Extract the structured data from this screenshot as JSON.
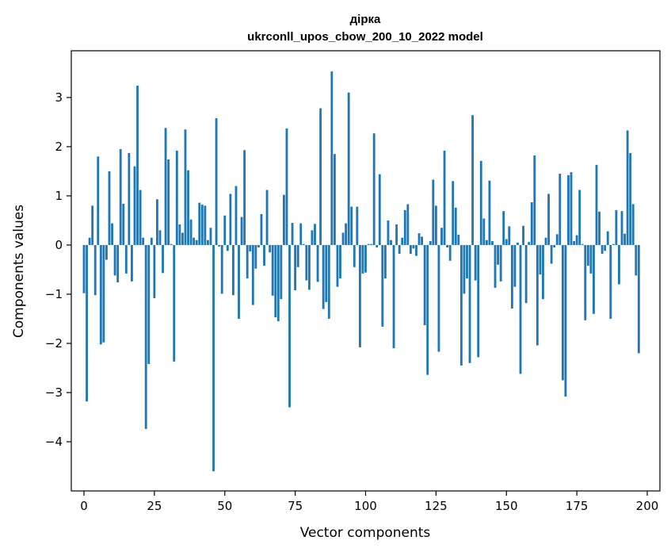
{
  "chart_data": {
    "type": "bar",
    "title": "дірка",
    "subtitle": "ukrconll_upos_cbow_200_10_2022 model",
    "xlabel": "Vector components",
    "ylabel": "Components values",
    "xlim": [
      -4.5,
      204.5
    ],
    "ylim": [
      -5.0,
      3.95
    ],
    "xticks": [
      0,
      25,
      50,
      75,
      100,
      125,
      150,
      175,
      200
    ],
    "yticks": [
      -4,
      -3,
      -2,
      -1,
      0,
      1,
      2,
      3
    ],
    "ytick_labels": [
      "−4",
      "−3",
      "−2",
      "−1",
      "0",
      "1",
      "2",
      "3"
    ],
    "grid": false,
    "color": "#1f77b4",
    "values": [
      -0.98,
      -3.18,
      0.15,
      0.8,
      -1.02,
      1.8,
      -2.02,
      -1.98,
      -0.3,
      1.5,
      0.44,
      -0.62,
      -0.76,
      1.95,
      0.84,
      -0.58,
      1.87,
      -0.74,
      1.6,
      3.24,
      1.12,
      0.15,
      -3.74,
      -2.42,
      0.15,
      -1.08,
      0.93,
      0.3,
      -0.57,
      2.38,
      1.74,
      0.02,
      -2.37,
      1.92,
      0.42,
      0.25,
      2.35,
      1.52,
      0.52,
      0.15,
      0.1,
      0.86,
      0.82,
      0.8,
      0.1,
      0.35,
      -4.6,
      2.58,
      -0.03,
      -0.99,
      0.6,
      -0.12,
      1.04,
      -1.02,
      1.2,
      -1.5,
      0.57,
      1.93,
      -0.68,
      -0.13,
      -1.22,
      -0.48,
      -0.05,
      0.63,
      -0.42,
      1.12,
      -0.15,
      -1.03,
      -1.47,
      -1.55,
      -1.1,
      1.02,
      2.37,
      -3.3,
      0.45,
      -0.92,
      -0.45,
      0.44,
      0.02,
      -0.72,
      -0.91,
      0.3,
      0.43,
      -0.75,
      2.78,
      -1.3,
      -1.16,
      -1.5,
      3.53,
      1.85,
      -0.85,
      -0.68,
      0.25,
      0.44,
      3.1,
      0.78,
      -0.45,
      0.78,
      -2.08,
      -0.58,
      -0.56,
      0.02,
      0.02,
      2.27,
      -0.05,
      1.44,
      -1.66,
      -0.68,
      0.5,
      0.1,
      -2.1,
      0.42,
      -0.18,
      0.15,
      0.71,
      0.83,
      -0.18,
      -0.07,
      -0.22,
      0.24,
      0.17,
      -1.63,
      -2.64,
      0.08,
      1.33,
      0.8,
      -2.17,
      0.35,
      1.92,
      -0.05,
      -0.32,
      1.3,
      0.76,
      0.21,
      -2.45,
      -0.99,
      -0.68,
      -2.4,
      2.64,
      -0.72,
      -2.28,
      1.71,
      0.54,
      0.1,
      1.31,
      0.08,
      -0.87,
      -0.4,
      -0.74,
      0.69,
      0.12,
      0.38,
      -1.29,
      -0.85,
      0.05,
      -2.62,
      0.39,
      -1.18,
      0.06,
      0.87,
      1.82,
      -2.04,
      -0.6,
      -1.1,
      0.15,
      1.04,
      -0.38,
      -0.05,
      0.22,
      1.45,
      -2.75,
      -3.08,
      1.42,
      1.48,
      0.08,
      0.2,
      1.12,
      0.02,
      -1.53,
      -0.42,
      -0.58,
      -1.4,
      1.63,
      0.68,
      -0.18,
      -0.12,
      0.28,
      -1.5,
      0.02,
      0.71,
      -0.8,
      0.69,
      0.23,
      2.33,
      1.87,
      0.83,
      -0.62,
      -2.2
    ]
  }
}
